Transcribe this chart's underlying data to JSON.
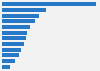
{
  "values": [
    340,
    160,
    135,
    120,
    100,
    92,
    85,
    78,
    70,
    60,
    48,
    28
  ],
  "bar_color": "#2878c8",
  "background_color": "#f2f2f2",
  "grid_color": "#ffffff",
  "bar_height": 0.72,
  "figsize": [
    1.0,
    0.71
  ],
  "dpi": 100
}
